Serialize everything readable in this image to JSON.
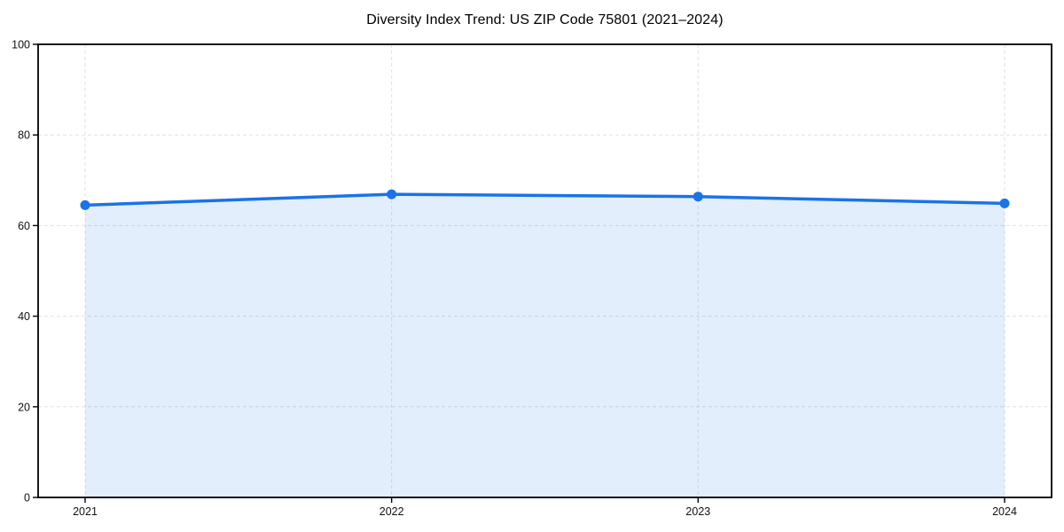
{
  "chart_data": {
    "type": "line",
    "title": "Diversity Index Trend: US ZIP Code 75801 (2021–2024)",
    "x": [
      "2021",
      "2022",
      "2023",
      "2024"
    ],
    "series": [
      {
        "name": "Diversity Index",
        "values": [
          64.5,
          66.9,
          66.4,
          64.9
        ],
        "line_color": "#1a73e8",
        "fill_color": "rgba(26,115,232,0.12)",
        "marker": "circle"
      }
    ],
    "xlabel": "",
    "ylabel": "",
    "ylim": [
      0,
      100
    ],
    "yticks": [
      0,
      20,
      40,
      60,
      80,
      100
    ],
    "grid": "dashed",
    "grid_color": "#e2e2e2",
    "axis_color": "#000000",
    "tick_label_color": "#111111",
    "legend": "none",
    "background": "#ffffff"
  }
}
